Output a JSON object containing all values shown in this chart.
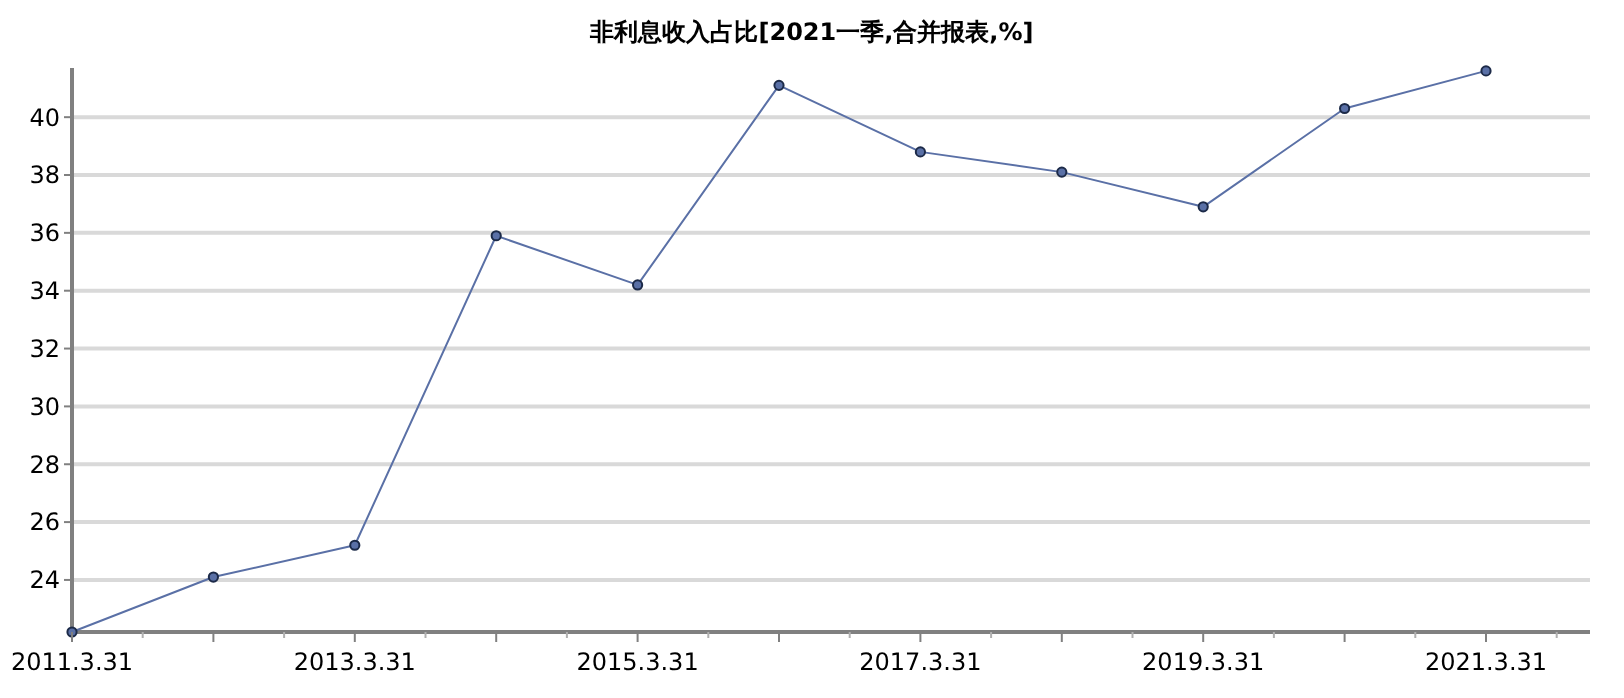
{
  "chart_data": {
    "type": "line",
    "title": "非利息收入占比[2021一季,合并报表,%]",
    "categories": [
      "2011.3.31",
      null,
      "2013.3.31",
      null,
      "2015.3.31",
      null,
      "2017.3.31",
      null,
      "2019.3.31",
      null,
      "2021.3.31"
    ],
    "series": [
      {
        "color": "#5a70a6",
        "values": [
          22.2,
          24.1,
          25.2,
          35.9,
          34.2,
          41.1,
          38.8,
          38.1,
          36.9,
          40.3,
          41.6
        ]
      }
    ],
    "ylim": [
      22.2,
      41.7
    ],
    "yticks": [
      24,
      26,
      28,
      30,
      32,
      34,
      36,
      38,
      40
    ],
    "grid": "y",
    "marker": "circle",
    "line_style": "solid"
  }
}
